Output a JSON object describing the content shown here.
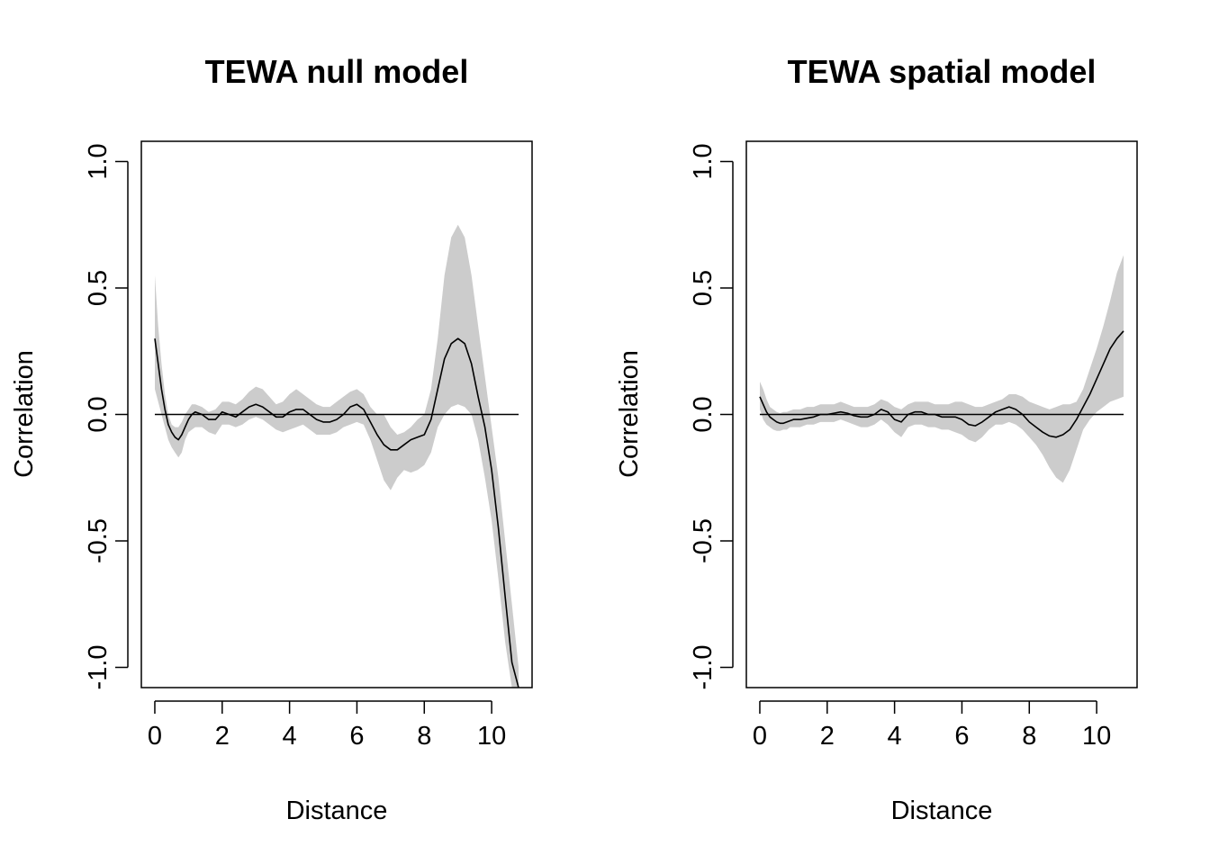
{
  "chart_data": [
    {
      "type": "line",
      "title": "TEWA null model",
      "xlabel": "Distance",
      "ylabel": "Correlation",
      "xlim": [
        -0.4,
        11.2
      ],
      "ylim": [
        -1.08,
        1.08
      ],
      "x_ticks": [
        "0",
        "2",
        "4",
        "6",
        "8",
        "10"
      ],
      "y_ticks": [
        "-1.0",
        "-0.5",
        "0.0",
        "0.5",
        "1.0"
      ],
      "grid": false,
      "legend": "none",
      "reference_line": {
        "y": 0,
        "x_range": [
          0,
          10.8
        ]
      },
      "band_color": "#cccccc",
      "line_color": "#000000",
      "x": [
        0,
        0.1,
        0.2,
        0.3,
        0.4,
        0.5,
        0.6,
        0.7,
        0.8,
        0.9,
        1.0,
        1.1,
        1.2,
        1.4,
        1.6,
        1.8,
        2.0,
        2.2,
        2.4,
        2.6,
        2.8,
        3.0,
        3.2,
        3.4,
        3.6,
        3.8,
        4.0,
        4.2,
        4.4,
        4.6,
        4.8,
        5.0,
        5.2,
        5.4,
        5.6,
        5.8,
        6.0,
        6.2,
        6.4,
        6.6,
        6.8,
        7.0,
        7.2,
        7.4,
        7.6,
        7.8,
        8.0,
        8.2,
        8.4,
        8.6,
        8.8,
        9.0,
        9.2,
        9.4,
        9.6,
        9.8,
        10.0,
        10.2,
        10.4,
        10.6,
        10.8
      ],
      "series": [
        {
          "y": [
            0.3,
            0.2,
            0.1,
            0.02,
            -0.04,
            -0.07,
            -0.09,
            -0.1,
            -0.08,
            -0.05,
            -0.02,
            0.0,
            0.01,
            0.0,
            -0.02,
            -0.02,
            0.01,
            0.0,
            -0.01,
            0.01,
            0.03,
            0.04,
            0.03,
            0.01,
            -0.01,
            -0.01,
            0.01,
            0.02,
            0.02,
            0.0,
            -0.02,
            -0.03,
            -0.03,
            -0.02,
            0.0,
            0.03,
            0.04,
            0.02,
            -0.03,
            -0.08,
            -0.12,
            -0.14,
            -0.14,
            -0.12,
            -0.1,
            -0.09,
            -0.08,
            -0.02,
            0.1,
            0.22,
            0.28,
            0.3,
            0.28,
            0.2,
            0.07,
            -0.05,
            -0.22,
            -0.45,
            -0.72,
            -0.98,
            -1.08
          ],
          "upper": [
            0.55,
            0.35,
            0.2,
            0.08,
            0.0,
            -0.04,
            -0.05,
            -0.05,
            -0.03,
            0.0,
            0.02,
            0.04,
            0.04,
            0.03,
            0.01,
            0.02,
            0.05,
            0.05,
            0.04,
            0.06,
            0.09,
            0.11,
            0.1,
            0.07,
            0.04,
            0.05,
            0.08,
            0.1,
            0.08,
            0.06,
            0.04,
            0.03,
            0.03,
            0.05,
            0.07,
            0.09,
            0.1,
            0.08,
            0.03,
            0.0,
            0.0,
            -0.05,
            -0.08,
            -0.07,
            -0.05,
            -0.02,
            0.0,
            0.1,
            0.3,
            0.55,
            0.7,
            0.75,
            0.7,
            0.55,
            0.35,
            0.15,
            -0.05,
            -0.25,
            -0.5,
            -0.75,
            -1.0
          ],
          "lower": [
            0.1,
            0.05,
            0.0,
            -0.05,
            -0.1,
            -0.13,
            -0.15,
            -0.17,
            -0.15,
            -0.1,
            -0.07,
            -0.06,
            -0.05,
            -0.05,
            -0.07,
            -0.08,
            -0.04,
            -0.04,
            -0.05,
            -0.04,
            -0.02,
            -0.01,
            -0.02,
            -0.04,
            -0.06,
            -0.07,
            -0.06,
            -0.05,
            -0.04,
            -0.06,
            -0.08,
            -0.08,
            -0.08,
            -0.07,
            -0.05,
            -0.04,
            -0.03,
            -0.04,
            -0.1,
            -0.18,
            -0.26,
            -0.3,
            -0.25,
            -0.22,
            -0.23,
            -0.22,
            -0.2,
            -0.15,
            -0.05,
            0.0,
            0.03,
            0.04,
            0.03,
            0.0,
            -0.1,
            -0.25,
            -0.42,
            -0.65,
            -0.9,
            -1.08,
            -1.08
          ]
        }
      ]
    },
    {
      "type": "line",
      "title": "TEWA spatial model",
      "xlabel": "Distance",
      "ylabel": "Correlation",
      "xlim": [
        -0.4,
        11.2
      ],
      "ylim": [
        -1.08,
        1.08
      ],
      "x_ticks": [
        "0",
        "2",
        "4",
        "6",
        "8",
        "10"
      ],
      "y_ticks": [
        "-1.0",
        "-0.5",
        "0.0",
        "0.5",
        "1.0"
      ],
      "grid": false,
      "legend": "none",
      "reference_line": {
        "y": 0,
        "x_range": [
          0,
          10.8
        ]
      },
      "band_color": "#cccccc",
      "line_color": "#000000",
      "x": [
        0,
        0.1,
        0.2,
        0.3,
        0.4,
        0.5,
        0.6,
        0.7,
        0.8,
        0.9,
        1.0,
        1.1,
        1.2,
        1.4,
        1.6,
        1.8,
        2.0,
        2.2,
        2.4,
        2.6,
        2.8,
        3.0,
        3.2,
        3.4,
        3.6,
        3.8,
        4.0,
        4.2,
        4.4,
        4.6,
        4.8,
        5.0,
        5.2,
        5.4,
        5.6,
        5.8,
        6.0,
        6.2,
        6.4,
        6.6,
        6.8,
        7.0,
        7.2,
        7.4,
        7.6,
        7.8,
        8.0,
        8.2,
        8.4,
        8.6,
        8.8,
        9.0,
        9.2,
        9.4,
        9.6,
        9.8,
        10.0,
        10.2,
        10.4,
        10.6,
        10.8
      ],
      "series": [
        {
          "y": [
            0.07,
            0.04,
            0.01,
            -0.01,
            -0.02,
            -0.03,
            -0.035,
            -0.035,
            -0.03,
            -0.025,
            -0.02,
            -0.02,
            -0.02,
            -0.015,
            -0.01,
            0.0,
            0.0,
            0.005,
            0.01,
            0.005,
            -0.005,
            -0.01,
            -0.01,
            0.0,
            0.02,
            0.01,
            -0.02,
            -0.03,
            0.0,
            0.01,
            0.01,
            0.0,
            0.0,
            -0.01,
            -0.01,
            -0.01,
            -0.02,
            -0.04,
            -0.045,
            -0.03,
            -0.01,
            0.01,
            0.02,
            0.03,
            0.02,
            0.0,
            -0.03,
            -0.05,
            -0.07,
            -0.085,
            -0.09,
            -0.08,
            -0.06,
            -0.02,
            0.03,
            0.08,
            0.14,
            0.2,
            0.26,
            0.3,
            0.33
          ],
          "upper": [
            0.13,
            0.1,
            0.06,
            0.03,
            0.02,
            0.01,
            0.005,
            0.01,
            0.01,
            0.015,
            0.02,
            0.02,
            0.02,
            0.03,
            0.03,
            0.04,
            0.04,
            0.04,
            0.05,
            0.04,
            0.03,
            0.03,
            0.03,
            0.04,
            0.06,
            0.05,
            0.03,
            0.02,
            0.04,
            0.05,
            0.05,
            0.05,
            0.04,
            0.04,
            0.04,
            0.05,
            0.05,
            0.04,
            0.03,
            0.03,
            0.04,
            0.05,
            0.06,
            0.08,
            0.08,
            0.07,
            0.05,
            0.04,
            0.03,
            0.02,
            0.03,
            0.04,
            0.04,
            0.05,
            0.1,
            0.18,
            0.26,
            0.35,
            0.45,
            0.56,
            0.63
          ],
          "lower": [
            0.02,
            -0.02,
            -0.04,
            -0.05,
            -0.06,
            -0.065,
            -0.065,
            -0.06,
            -0.06,
            -0.05,
            -0.05,
            -0.05,
            -0.05,
            -0.04,
            -0.04,
            -0.03,
            -0.03,
            -0.03,
            -0.02,
            -0.03,
            -0.04,
            -0.05,
            -0.05,
            -0.04,
            -0.02,
            -0.04,
            -0.07,
            -0.09,
            -0.05,
            -0.04,
            -0.04,
            -0.05,
            -0.05,
            -0.06,
            -0.06,
            -0.07,
            -0.08,
            -0.1,
            -0.11,
            -0.09,
            -0.06,
            -0.04,
            -0.04,
            -0.03,
            -0.04,
            -0.06,
            -0.09,
            -0.12,
            -0.16,
            -0.21,
            -0.25,
            -0.27,
            -0.22,
            -0.14,
            -0.06,
            -0.02,
            0.01,
            0.03,
            0.05,
            0.06,
            0.07
          ]
        }
      ]
    }
  ]
}
